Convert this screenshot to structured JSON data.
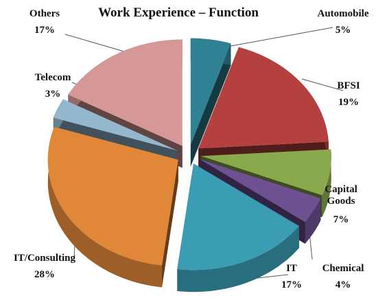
{
  "chart_data": {
    "type": "pie",
    "title": "Work Experience – Function",
    "categories": [
      "Automobile",
      "BFSI",
      "Capital Goods",
      "Chemical",
      "IT",
      "IT/Consulting",
      "Telecom",
      "Others"
    ],
    "values": [
      5,
      19,
      7,
      4,
      17,
      28,
      3,
      17
    ],
    "value_labels": [
      "5%",
      "19%",
      "7%",
      "4%",
      "17%",
      "28%",
      "3%",
      "17%"
    ],
    "colors": [
      "#2f8193",
      "#b5413f",
      "#8aa84c",
      "#6d5193",
      "#3b9db4",
      "#e08838",
      "#93b7cc",
      "#d59896"
    ]
  }
}
